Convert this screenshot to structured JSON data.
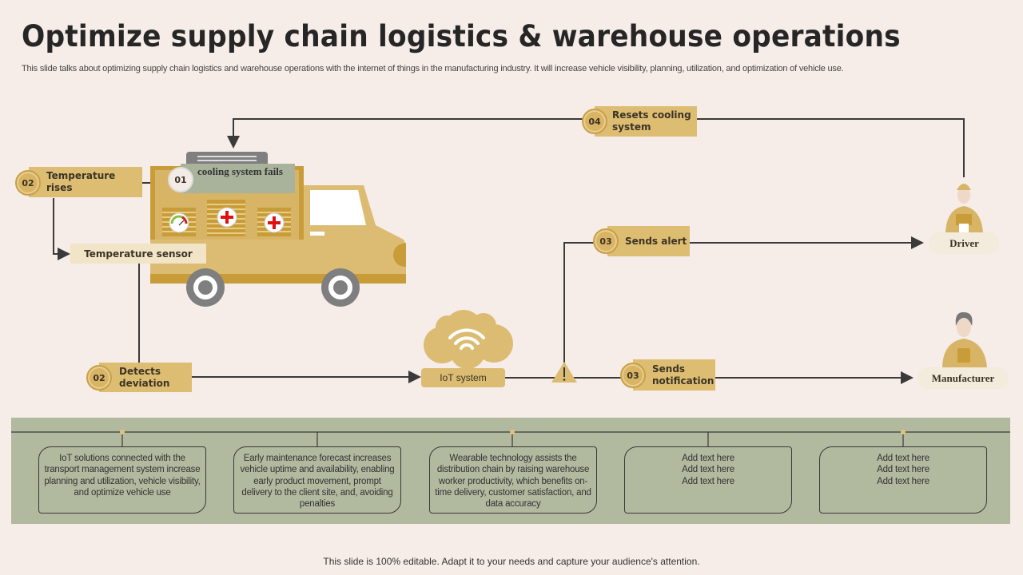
{
  "title": "Optimize supply chain logistics & warehouse operations",
  "subtitle": "This slide talks about optimizing supply chain logistics and warehouse operations with the internet of things in the manufacturing industry. It will increase vehicle visibility, planning, utilization, and optimization of vehicle use.",
  "colors": {
    "background": "#f6ece8",
    "gold": "#ddbd72",
    "panel": "#b1b99f",
    "line": "#3a3a3a"
  },
  "diagram": {
    "cooling_fails": {
      "number": "01",
      "label": "cooling system fails"
    },
    "temperature_rises": {
      "number": "02",
      "label": "Temperature rises"
    },
    "temperature_sensor": {
      "label": "Temperature sensor"
    },
    "detects_deviation": {
      "number": "02",
      "label": "Detects deviation"
    },
    "iot_system": {
      "label": "IoT system",
      "icon": "wifi-cloud-icon"
    },
    "warning": {
      "icon": "warning-icon"
    },
    "sends_alert": {
      "number": "03",
      "label": "Sends alert"
    },
    "sends_notification": {
      "number": "03",
      "label": "Sends notification"
    },
    "resets_cooling": {
      "number": "04",
      "label": "Resets cooling system"
    },
    "driver": {
      "label": "Driver"
    },
    "manufacturer": {
      "label": "Manufacturer"
    }
  },
  "cards": [
    "IoT  solutions connected with the transport management system increase planning and utilization, vehicle visibility, and optimize vehicle use",
    "Early maintenance forecast increases vehicle uptime and availability, enabling early product movement, prompt delivery to the client site, and, avoiding penalties",
    "Wearable technology assists the distribution chain by raising warehouse worker productivity, which benefits on-time delivery, customer satisfaction, and data accuracy",
    "Add text here\nAdd text here\nAdd text here",
    "Add text here\nAdd text here\nAdd text here"
  ],
  "footer": "This slide is 100% editable. Adapt it to your needs and capture your audience's attention."
}
